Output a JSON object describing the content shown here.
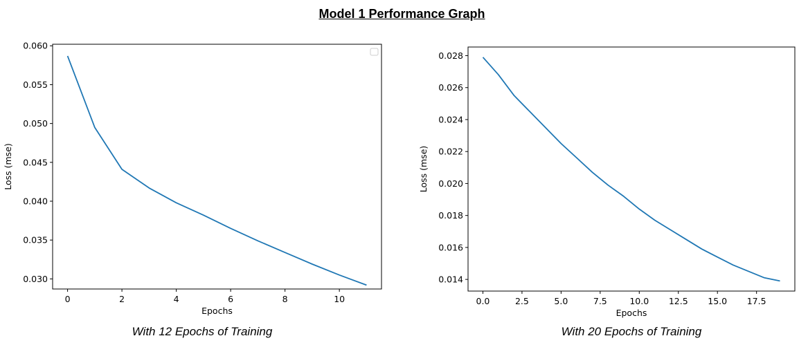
{
  "title": "Model 1 Performance Graph",
  "captions": [
    "With 12 Epochs of Training",
    "With 20 Epochs of Training"
  ],
  "colors": {
    "line": "#1f77b4"
  },
  "chart_data": [
    {
      "type": "line",
      "xlabel": "Epochs",
      "ylabel": "Loss (mse)",
      "xlim": [
        -0.55,
        11.55
      ],
      "ylim": [
        0.0287,
        0.0602
      ],
      "xticks": [
        0,
        2,
        4,
        6,
        8,
        10
      ],
      "xtick_labels": [
        "0",
        "2",
        "4",
        "6",
        "8",
        "10"
      ],
      "yticks": [
        0.03,
        0.035,
        0.04,
        0.045,
        0.05,
        0.055,
        0.06
      ],
      "ytick_labels": [
        "0.030",
        "0.035",
        "0.040",
        "0.045",
        "0.050",
        "0.055",
        "0.060"
      ],
      "legend": "empty, top-right",
      "series": [
        {
          "x": [
            0,
            1,
            2,
            3,
            4,
            5,
            6,
            7,
            8,
            9,
            10,
            11
          ],
          "values": [
            0.0587,
            0.0495,
            0.0441,
            0.0417,
            0.0398,
            0.0382,
            0.0365,
            0.0349,
            0.0334,
            0.0319,
            0.0305,
            0.0292
          ]
        }
      ]
    },
    {
      "type": "line",
      "xlabel": "Epochs",
      "ylabel": "Loss (mse)",
      "xlim": [
        -0.95,
        19.95
      ],
      "ylim": [
        0.01327,
        0.02854
      ],
      "xticks": [
        0,
        2.5,
        5,
        7.5,
        10,
        12.5,
        15,
        17.5
      ],
      "xtick_labels": [
        "0.0",
        "2.5",
        "5.0",
        "7.5",
        "10.0",
        "12.5",
        "15.0",
        "17.5"
      ],
      "yticks": [
        0.014,
        0.016,
        0.018,
        0.02,
        0.022,
        0.024,
        0.026,
        0.028
      ],
      "ytick_labels": [
        "0.014",
        "0.016",
        "0.018",
        "0.020",
        "0.022",
        "0.024",
        "0.026",
        "0.028"
      ],
      "series": [
        {
          "x": [
            0,
            1,
            2,
            3,
            4,
            5,
            6,
            7,
            8,
            9,
            10,
            11,
            12,
            13,
            14,
            15,
            16,
            17,
            18,
            19
          ],
          "values": [
            0.0279,
            0.0268,
            0.0255,
            0.0245,
            0.0235,
            0.0225,
            0.0216,
            0.0207,
            0.0199,
            0.0192,
            0.0184,
            0.0177,
            0.0171,
            0.0165,
            0.0159,
            0.0154,
            0.0149,
            0.0145,
            0.0141,
            0.0139
          ]
        }
      ]
    }
  ]
}
